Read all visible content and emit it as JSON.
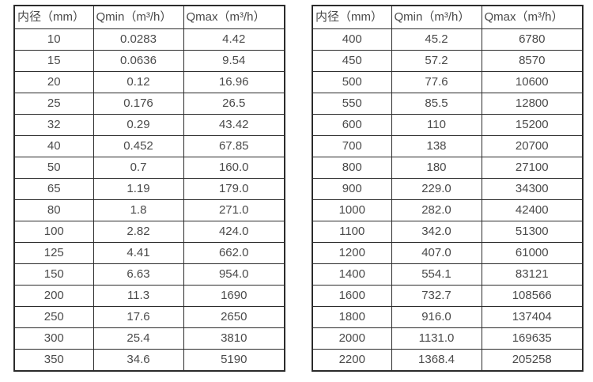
{
  "page": {
    "background": "#ffffff",
    "text_color": "#4a4a4a",
    "border_color": "#2b2b2b"
  },
  "tables": [
    {
      "name": "flow-table-small-diameters",
      "headers": [
        "内径（mm）",
        "Qmin（m³/h）",
        "Qmax（m³/h）"
      ],
      "rows": [
        [
          "10",
          "0.0283",
          "4.42"
        ],
        [
          "15",
          "0.0636",
          "9.54"
        ],
        [
          "20",
          "0.12",
          "16.96"
        ],
        [
          "25",
          "0.176",
          "26.5"
        ],
        [
          "32",
          "0.29",
          "43.42"
        ],
        [
          "40",
          "0.452",
          "67.85"
        ],
        [
          "50",
          "0.7",
          "160.0"
        ],
        [
          "65",
          "1.19",
          "179.0"
        ],
        [
          "80",
          "1.8",
          "271.0"
        ],
        [
          "100",
          "2.82",
          "424.0"
        ],
        [
          "125",
          "4.41",
          "662.0"
        ],
        [
          "150",
          "6.63",
          "954.0"
        ],
        [
          "200",
          "11.3",
          "1690"
        ],
        [
          "250",
          "17.6",
          "2650"
        ],
        [
          "300",
          "25.4",
          "3810"
        ],
        [
          "350",
          "34.6",
          "5190"
        ]
      ]
    },
    {
      "name": "flow-table-large-diameters",
      "headers": [
        "内径（mm）",
        "Qmin（m³/h）",
        "Qmax（m³/h）"
      ],
      "rows": [
        [
          "400",
          "45.2",
          "6780"
        ],
        [
          "450",
          "57.2",
          "8570"
        ],
        [
          "500",
          "77.6",
          "10600"
        ],
        [
          "550",
          "85.5",
          "12800"
        ],
        [
          "600",
          "110",
          "15200"
        ],
        [
          "700",
          "138",
          "20700"
        ],
        [
          "800",
          "180",
          "27100"
        ],
        [
          "900",
          "229.0",
          "34300"
        ],
        [
          "1000",
          "282.0",
          "42400"
        ],
        [
          "1100",
          "342.0",
          "51300"
        ],
        [
          "1200",
          "407.0",
          "61000"
        ],
        [
          "1400",
          "554.1",
          "83121"
        ],
        [
          "1600",
          "732.7",
          "108566"
        ],
        [
          "1800",
          "916.0",
          "137404"
        ],
        [
          "2000",
          "1131.0",
          "169635"
        ],
        [
          "2200",
          "1368.4",
          "205258"
        ]
      ]
    }
  ]
}
